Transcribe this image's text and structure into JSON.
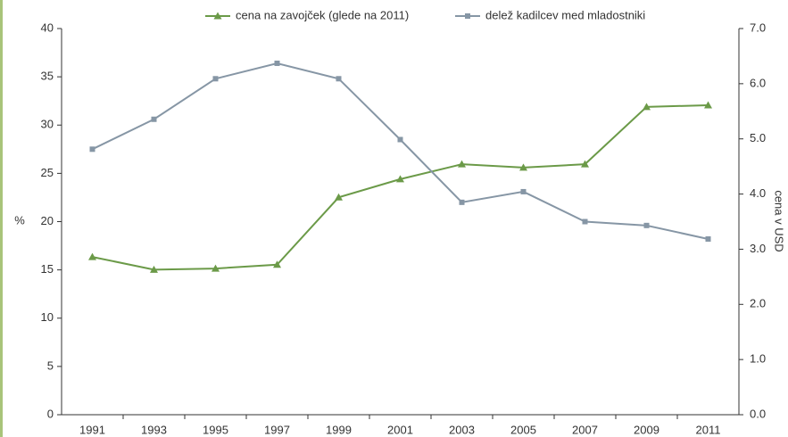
{
  "chart_data": {
    "type": "line",
    "categories": [
      "1991",
      "1993",
      "1995",
      "1997",
      "1999",
      "2001",
      "2003",
      "2005",
      "2007",
      "2009",
      "2011"
    ],
    "series": [
      {
        "name": "cena na zavojček (glede na 2011)",
        "color": "#6b9a48",
        "axis": "y2",
        "marker": "triangle",
        "values": [
          2.86,
          2.63,
          2.65,
          2.72,
          3.94,
          4.27,
          4.54,
          4.48,
          4.54,
          5.58,
          5.61
        ]
      },
      {
        "name": "delež kadilcev med mladostniki",
        "color": "#8696a5",
        "marker": "square",
        "values": [
          27.5,
          30.6,
          34.8,
          36.4,
          34.8,
          28.5,
          22.0,
          23.1,
          20.0,
          19.6,
          18.2
        ]
      }
    ],
    "ylabel": "%",
    "y2label": "cena v USD",
    "ylim": [
      0,
      40
    ],
    "yticks": [
      0,
      5,
      10,
      15,
      20,
      25,
      30,
      35,
      40
    ],
    "y2lim": [
      0,
      7
    ],
    "y2ticks": [
      {
        "value": 0,
        "label": "0.0"
      },
      {
        "value": 1,
        "label": "1.0"
      },
      {
        "value": 2,
        "label": "2.0"
      },
      {
        "value": 3,
        "label": "3.0"
      },
      {
        "value": 4,
        "label": "4.0"
      },
      {
        "value": 5,
        "label": "5.0"
      },
      {
        "value": 6,
        "label": "6.0"
      },
      {
        "value": 7,
        "label": "7.0"
      }
    ],
    "grid": false,
    "legend": "top"
  }
}
